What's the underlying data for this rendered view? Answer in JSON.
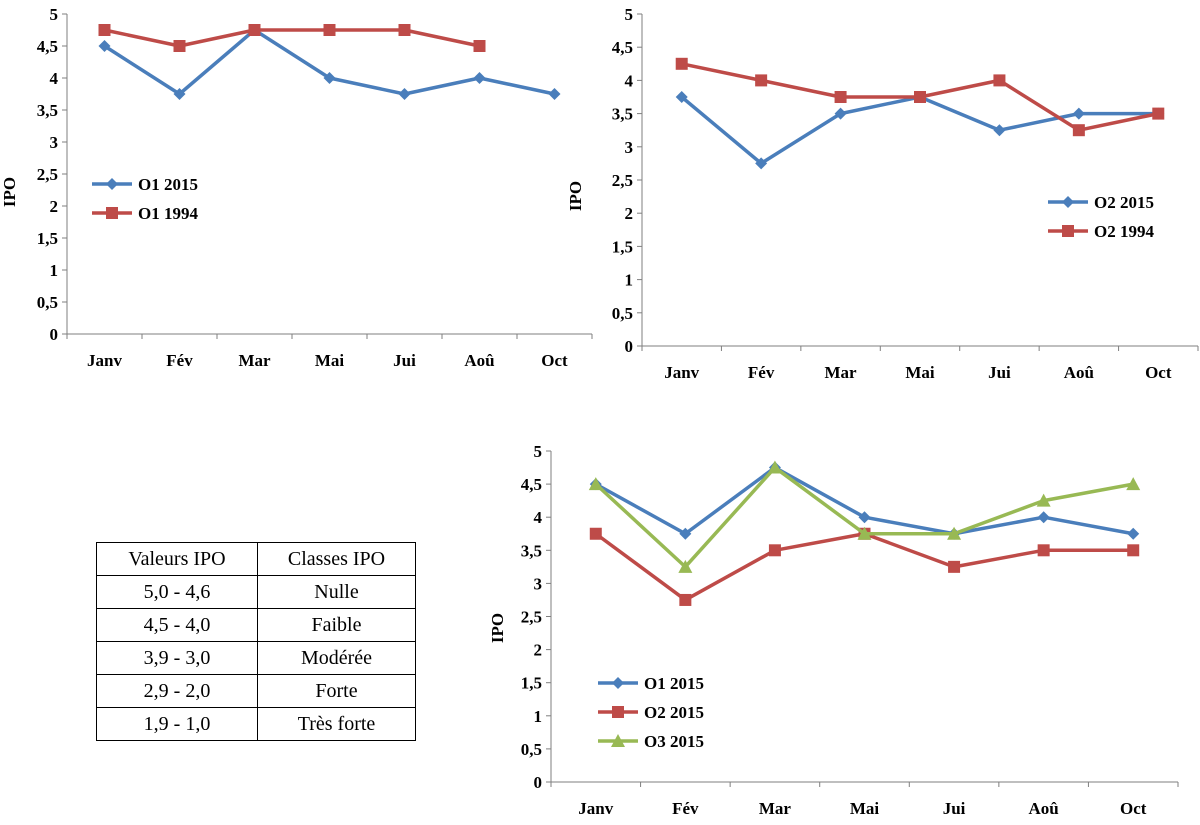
{
  "chart_data": [
    {
      "type": "line",
      "title": "",
      "xlabel": "",
      "ylabel": "IPO",
      "categories": [
        "Janv",
        "Fév",
        "Mar",
        "Mai",
        "Jui",
        "Aoû",
        "Oct"
      ],
      "ylim": [
        0,
        5
      ],
      "yticks": [
        "0",
        "0,5",
        "1",
        "1,5",
        "2",
        "2,5",
        "3",
        "3,5",
        "4",
        "4,5",
        "5"
      ],
      "legend_position": "middle-left",
      "series": [
        {
          "name": "O1 2015",
          "color": "#4a7ebb",
          "marker": "diamond",
          "values": [
            4.5,
            3.75,
            4.75,
            4.0,
            3.75,
            4.0,
            3.75
          ]
        },
        {
          "name": "O1 1994",
          "color": "#be4b48",
          "marker": "square",
          "values": [
            4.75,
            4.5,
            4.75,
            4.75,
            4.75,
            4.5,
            null
          ]
        }
      ]
    },
    {
      "type": "line",
      "title": "",
      "xlabel": "",
      "ylabel": "IPO",
      "categories": [
        "Janv",
        "Fév",
        "Mar",
        "Mai",
        "Jui",
        "Aoû",
        "Oct"
      ],
      "ylim": [
        0,
        5
      ],
      "yticks": [
        "0",
        "0,5",
        "1",
        "1,5",
        "2",
        "2,5",
        "3",
        "3,5",
        "4",
        "4,5",
        "5"
      ],
      "legend_position": "middle-right",
      "series": [
        {
          "name": "O2 2015",
          "color": "#4a7ebb",
          "marker": "diamond",
          "values": [
            3.75,
            2.75,
            3.5,
            3.75,
            3.25,
            3.5,
            3.5
          ]
        },
        {
          "name": "O2 1994",
          "color": "#be4b48",
          "marker": "square",
          "values": [
            4.25,
            4.0,
            3.75,
            3.75,
            4.0,
            3.25,
            3.5
          ]
        }
      ]
    },
    {
      "type": "line",
      "title": "",
      "xlabel": "",
      "ylabel": "IPO",
      "categories": [
        "Janv",
        "Fév",
        "Mar",
        "Mai",
        "Jui",
        "Aoû",
        "Oct"
      ],
      "ylim": [
        0,
        5
      ],
      "yticks": [
        "0",
        "0,5",
        "1",
        "1,5",
        "2",
        "2,5",
        "3",
        "3,5",
        "4",
        "4,5",
        "5"
      ],
      "legend_position": "bottom-left",
      "series": [
        {
          "name": "O1 2015",
          "color": "#4a7ebb",
          "marker": "diamond",
          "values": [
            4.5,
            3.75,
            4.75,
            4.0,
            3.75,
            4.0,
            3.75
          ]
        },
        {
          "name": "O2 2015",
          "color": "#be4b48",
          "marker": "square",
          "values": [
            3.75,
            2.75,
            3.5,
            3.75,
            3.25,
            3.5,
            3.5
          ]
        },
        {
          "name": "O3 2015",
          "color": "#98b954",
          "marker": "triangle",
          "values": [
            4.5,
            3.25,
            4.75,
            3.75,
            3.75,
            4.25,
            4.5
          ]
        }
      ]
    }
  ],
  "classes_table": {
    "headers": [
      "Valeurs IPO",
      "Classes IPO"
    ],
    "rows": [
      [
        "5,0 - 4,6",
        "Nulle"
      ],
      [
        "4,5 - 4,0",
        "Faible"
      ],
      [
        "3,9 - 3,0",
        "Modérée"
      ],
      [
        "2,9 - 2,0",
        "Forte"
      ],
      [
        "1,9 - 1,0",
        "Très forte"
      ]
    ]
  }
}
